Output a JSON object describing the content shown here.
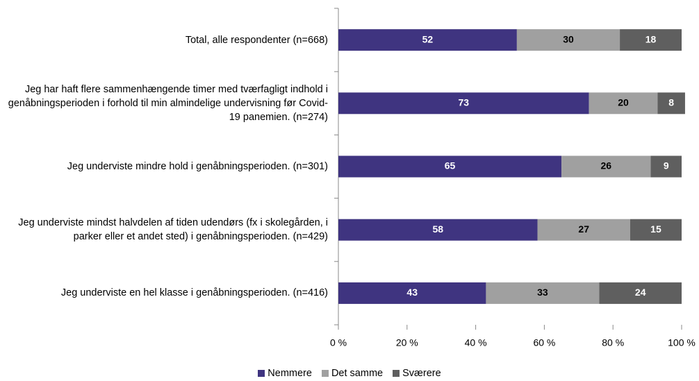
{
  "chart_data": {
    "type": "stacked-bar-horizontal",
    "categories": [
      "Total, alle respondenter (n=668)",
      "Jeg har haft flere sammenhængende timer med tværfagligt indhold i genåbningsperioden i forhold til min almindelige undervisning før Covid-19 panemien. (n=274)",
      "Jeg underviste mindre hold i genåbningsperioden. (n=301)",
      "Jeg underviste mindst halvdelen af tiden udendørs (fx i skolegården, i parker eller et andet sted) i genåbningsperioden. (n=429)",
      "Jeg underviste en hel klasse i genåbningsperioden. (n=416)"
    ],
    "series": [
      {
        "name": "Nemmere",
        "color": "#3f3480",
        "values": [
          52,
          73,
          65,
          58,
          43
        ]
      },
      {
        "name": "Det samme",
        "color": "#a0a0a0",
        "values": [
          30,
          20,
          26,
          27,
          33
        ]
      },
      {
        "name": "Sværere",
        "color": "#5f5f5f",
        "values": [
          18,
          8,
          9,
          15,
          24
        ]
      }
    ],
    "xlim": [
      0,
      100
    ],
    "xticks": [
      {
        "value": 0,
        "label": "0 %"
      },
      {
        "value": 20,
        "label": "20 %"
      },
      {
        "value": 40,
        "label": "40 %"
      },
      {
        "value": 60,
        "label": "60 %"
      },
      {
        "value": 80,
        "label": "80 %"
      },
      {
        "value": 100,
        "label": "100 %"
      }
    ],
    "legend": "bottom"
  }
}
